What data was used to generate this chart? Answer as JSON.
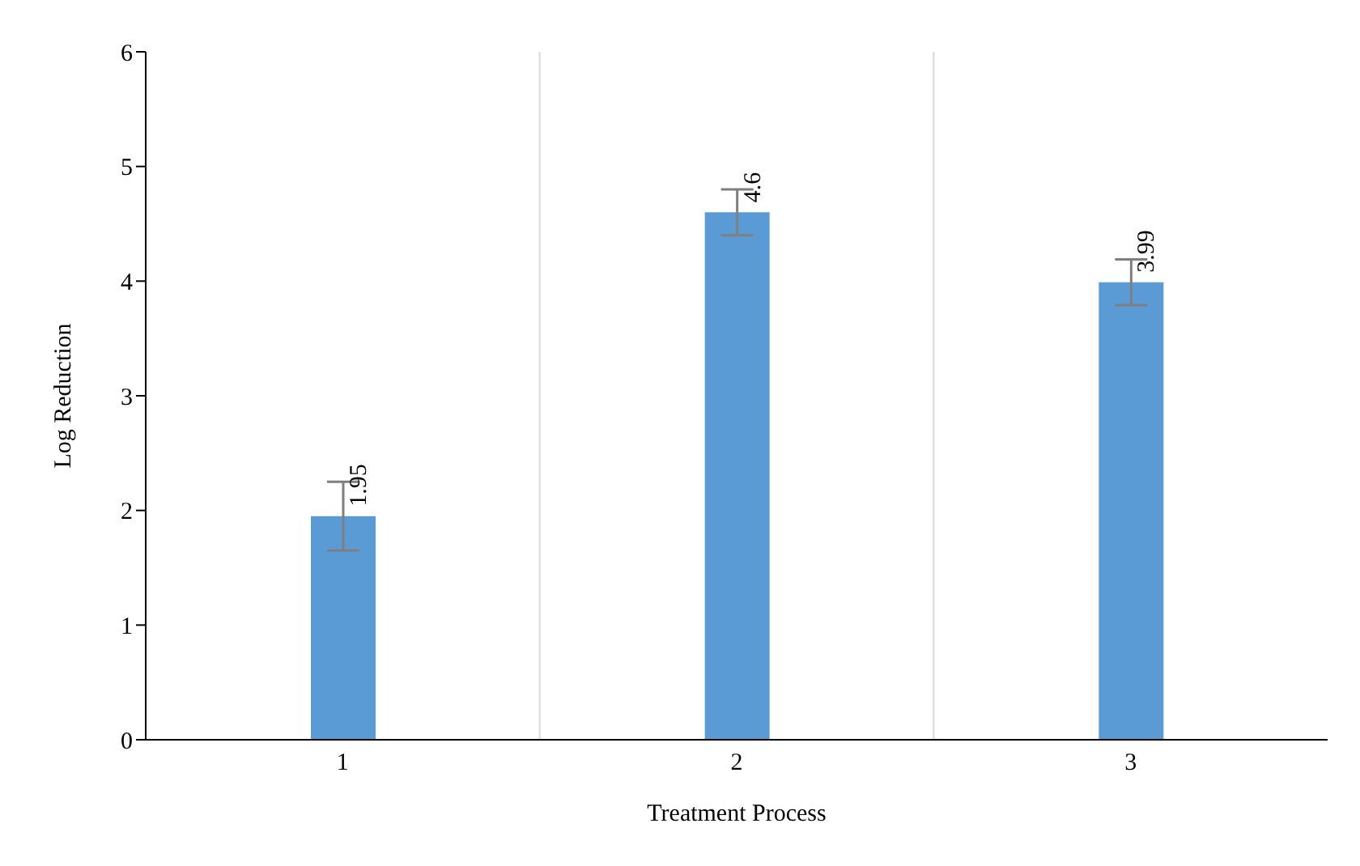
{
  "chart_data": {
    "type": "bar",
    "xlabel": "Treatment Process",
    "ylabel": "Log Reduction",
    "categories": [
      "1",
      "2",
      "3"
    ],
    "values": [
      1.95,
      4.6,
      3.99
    ],
    "errors": [
      0.3,
      0.2,
      0.2
    ],
    "color": "#5b9bd5",
    "ylim": [
      0,
      6
    ],
    "yticks": [
      0,
      1,
      2,
      3,
      4,
      5,
      6
    ],
    "grid": "x",
    "data_labels": true
  }
}
